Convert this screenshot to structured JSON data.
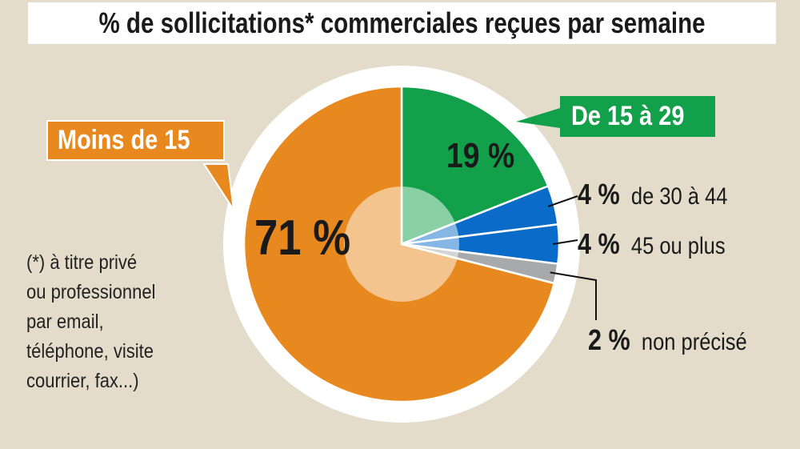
{
  "chart_data": {
    "type": "pie",
    "title": "% de sollicitations* commerciales reçues par semaine",
    "categories": [
      "De 15 à 29",
      "de 30 à 44",
      "45 ou plus",
      "non précisé",
      "Moins de 15"
    ],
    "values": [
      19,
      4,
      4,
      2,
      71
    ],
    "value_labels": [
      "19 %",
      "4 %",
      "4 %",
      "2 %",
      "71 %"
    ],
    "colors": [
      "#12a04a",
      "#0a6cc8",
      "#0a6cc8",
      "#a7a9ab",
      "#e8891f"
    ],
    "start": "12 o'clock, clockwise"
  },
  "footnote": [
    "(*) à titre privé",
    "ou professionnel",
    "par email,",
    "téléphone, visite",
    "courrier, fax...)"
  ],
  "colors": {
    "background": "#e4dccb",
    "ring": "#ffffff"
  }
}
